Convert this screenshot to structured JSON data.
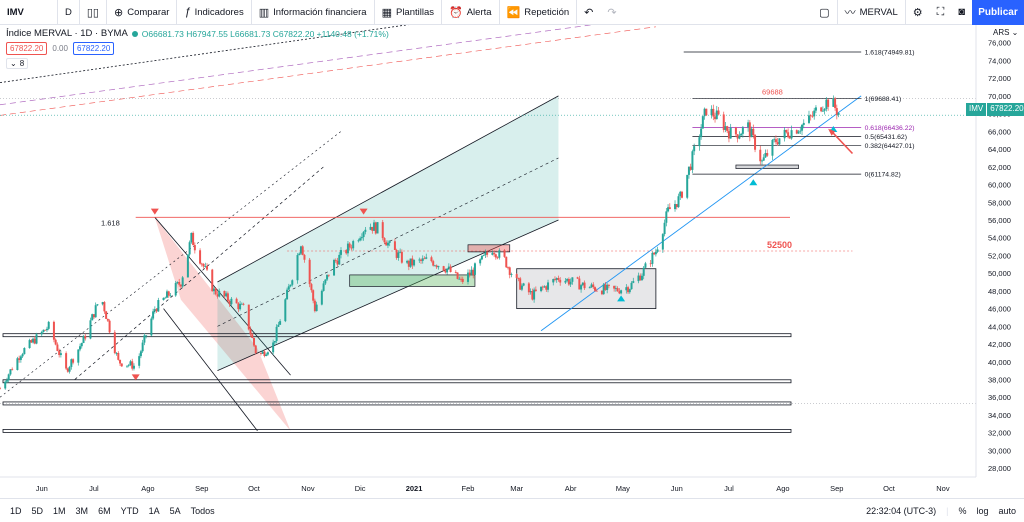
{
  "toolbar": {
    "symbol": "IMV",
    "interval": "D",
    "compare_label": "Comparar",
    "indicators_label": "Indicadores",
    "financial_label": "Información financiera",
    "templates_label": "Plantillas",
    "alert_label": "Alerta",
    "replay_label": "Repetición",
    "right_symbol": "MERVAL",
    "publish_label": "Publicar"
  },
  "legend": {
    "title": "Índice MERVAL · 1D · BYMA",
    "ohlc": "O66681.73 H67947.55 L66681.73 C67822.20 +1140.48 (+1.71%)",
    "bid": "67822.20",
    "spread": "0.00",
    "ask": "67822.20",
    "indicator_count": "8"
  },
  "currency": "ARS",
  "price_badge": {
    "symbol": "IMV",
    "value": "67822.20",
    "color": "#26a69a"
  },
  "bottom": {
    "ranges": [
      "1D",
      "5D",
      "1M",
      "3M",
      "6M",
      "YTD",
      "1A",
      "5A",
      "Todos"
    ],
    "time": "22:32:04 (UTC-3)",
    "percent": "%",
    "log": "log",
    "auto": "auto"
  },
  "chart_data": {
    "type": "candlestick",
    "title": "Índice MERVAL · 1D · BYMA",
    "ylim": [
      27000,
      78000
    ],
    "y_ticks": [
      28000,
      30000,
      32000,
      34000,
      36000,
      38000,
      40000,
      42000,
      44000,
      46000,
      48000,
      50000,
      52000,
      54000,
      56000,
      58000,
      60000,
      62000,
      64000,
      66000,
      68000,
      70000,
      72000,
      74000,
      76000
    ],
    "x_ticks": [
      "Jun",
      "Jul",
      "Ago",
      "Sep",
      "Oct",
      "Nov",
      "Dic",
      "2021",
      "Feb",
      "Mar",
      "Abr",
      "May",
      "Jun",
      "Jul",
      "Ago",
      "Sep",
      "Oct",
      "Nov"
    ],
    "x_range": [
      "2020-05-08",
      "2021-11-20"
    ],
    "price_path": [
      [
        "2020-05-08",
        37000
      ],
      [
        "2020-05-20",
        41000
      ],
      [
        "2020-06-05",
        44000
      ],
      [
        "2020-06-15",
        39000
      ],
      [
        "2020-06-25",
        42500
      ],
      [
        "2020-07-05",
        47500
      ],
      [
        "2020-07-15",
        40000
      ],
      [
        "2020-07-25",
        39500
      ],
      [
        "2020-08-05",
        46000
      ],
      [
        "2020-08-20",
        49000
      ],
      [
        "2020-08-26",
        54000
      ],
      [
        "2020-09-08",
        48000
      ],
      [
        "2020-09-25",
        46000
      ],
      [
        "2020-10-03",
        40500
      ],
      [
        "2020-10-12",
        42000
      ],
      [
        "2020-10-22",
        49000
      ],
      [
        "2020-10-28",
        53500
      ],
      [
        "2020-11-05",
        46000
      ],
      [
        "2020-11-15",
        51000
      ],
      [
        "2020-11-25",
        53000
      ],
      [
        "2020-12-05",
        55500
      ],
      [
        "2020-12-12",
        55000
      ],
      [
        "2020-12-18",
        53000
      ],
      [
        "2020-12-28",
        51000
      ],
      [
        "2021-01-10",
        51500
      ],
      [
        "2021-01-20",
        50500
      ],
      [
        "2021-01-28",
        49000
      ],
      [
        "2021-02-05",
        50500
      ],
      [
        "2021-02-15",
        52800
      ],
      [
        "2021-02-22",
        51500
      ],
      [
        "2021-03-01",
        49000
      ],
      [
        "2021-03-10",
        47500
      ],
      [
        "2021-03-25",
        49500
      ],
      [
        "2021-04-10",
        48500
      ],
      [
        "2021-04-25",
        48000
      ],
      [
        "2021-05-05",
        48500
      ],
      [
        "2021-05-12",
        50000
      ],
      [
        "2021-05-20",
        52500
      ],
      [
        "2021-05-27",
        57000
      ],
      [
        "2021-06-03",
        58500
      ],
      [
        "2021-06-10",
        63000
      ],
      [
        "2021-06-18",
        68500
      ],
      [
        "2021-06-25",
        67500
      ],
      [
        "2021-07-03",
        65500
      ],
      [
        "2021-07-12",
        66500
      ],
      [
        "2021-07-20",
        62500
      ],
      [
        "2021-07-28",
        65000
      ],
      [
        "2021-08-05",
        66000
      ],
      [
        "2021-08-15",
        67000
      ],
      [
        "2021-08-23",
        69000
      ],
      [
        "2021-08-28",
        69500
      ],
      [
        "2021-09-03",
        67822.2
      ]
    ],
    "horizontal_levels": [
      {
        "price": 56300,
        "label": "1.618",
        "color": "#ef5350"
      },
      {
        "price": 52500,
        "label": "52500",
        "color": "#ef5350"
      },
      {
        "price": 43000,
        "label": "",
        "color": "#131722"
      },
      {
        "price": 37800,
        "label": "",
        "color": "#131722"
      },
      {
        "price": 35300,
        "label": "",
        "color": "#131722"
      },
      {
        "price": 32200,
        "label": "",
        "color": "#131722"
      }
    ],
    "fib_levels": [
      {
        "ratio": "1.618",
        "price": "74949.81"
      },
      {
        "ratio": "1",
        "price": "69688.41"
      },
      {
        "ratio": "0.618",
        "price": "66436.22"
      },
      {
        "ratio": "0.5",
        "price": "65431.62"
      },
      {
        "ratio": "0.382",
        "price": "64427.01"
      },
      {
        "ratio": "0",
        "price": "61174.82"
      }
    ],
    "annotations": [
      "69688",
      "52500",
      "1.618"
    ]
  }
}
